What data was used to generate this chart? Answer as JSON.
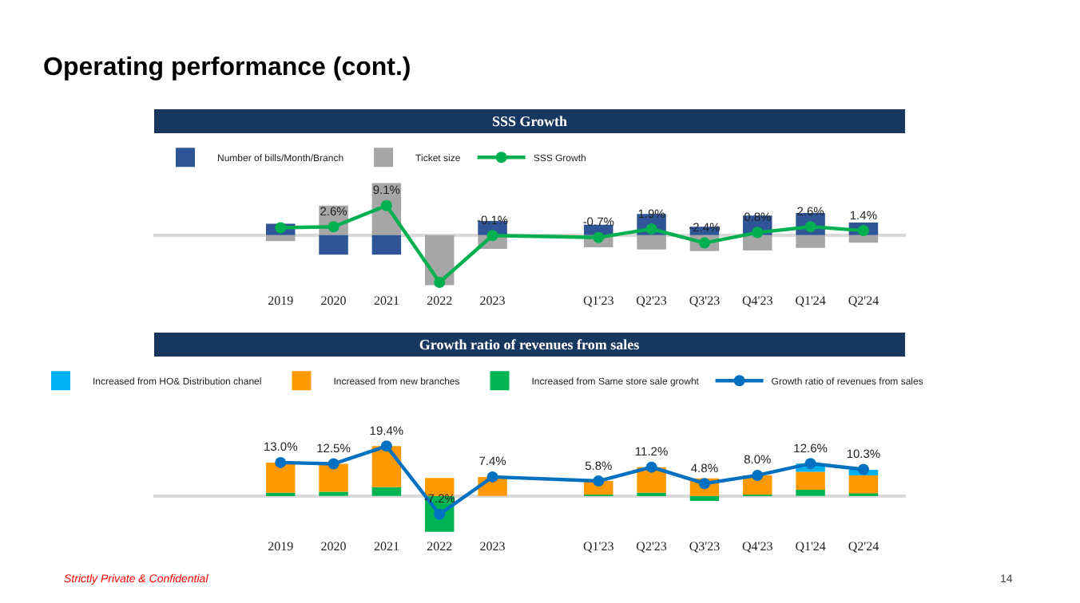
{
  "chart_data": [
    {
      "type": "bar",
      "title": "SSS Growth",
      "stacked": true,
      "legend": "top left",
      "categories": [
        "2019",
        "2020",
        "2021",
        "2022",
        "2023",
        null,
        "Q1'23",
        "Q2'23",
        "Q3'23",
        "Q4'23",
        "Q1'24",
        "Q2'24"
      ],
      "series": [
        {
          "name": "Ticket size",
          "color": "#a6a6a6",
          "values": [
            -1.8,
            9.1,
            16.0,
            -15.4,
            -4.2,
            null,
            -3.7,
            -4.4,
            -4.9,
            -4.7,
            -3.9,
            -2.3
          ]
        },
        {
          "name": "Number of bills/Month/Branch",
          "color": "#2f5597",
          "values": [
            3.5,
            -6.0,
            -6.0,
            0,
            4.4,
            null,
            3.2,
            6.5,
            2.6,
            6.0,
            6.8,
            3.9
          ]
        },
        {
          "name": "SSS Growth",
          "type": "line",
          "color": "#00b050",
          "marker": "circle",
          "line_style": "solid",
          "values": [
            2.3,
            2.6,
            9.1,
            -14.5,
            -0.1,
            null,
            -0.7,
            1.9,
            -2.4,
            0.8,
            2.6,
            1.4
          ],
          "value_labels": [
            null,
            "2.6%",
            "9.1%",
            null,
            "-0.1%",
            null,
            "-0.7%",
            "1.9%",
            "-2.4%",
            "0.8%",
            "2.6%",
            "1.4%"
          ]
        }
      ],
      "annotations": [
        "Operating performance (cont.)"
      ]
    },
    {
      "type": "bar",
      "title": "Growth ratio of revenues from sales",
      "stacked": true,
      "legend": "top left",
      "categories": [
        "2019",
        "2020",
        "2021",
        "2022",
        "2023",
        null,
        "Q1'23",
        "Q2'23",
        "Q3'23",
        "Q4'23",
        "Q1'24",
        "Q2'24"
      ],
      "series": [
        {
          "name": "Increased from Same store sale growht",
          "color": "#00b454",
          "values": [
            1.2,
            1.6,
            3.4,
            -14.0,
            0,
            null,
            0.4,
            1.2,
            -2.0,
            0.4,
            2.4,
            1.0
          ]
        },
        {
          "name": "Increased from new branches",
          "color": "#ff9900",
          "values": [
            11.8,
            10.9,
            16.0,
            7.0,
            7.4,
            null,
            5.4,
            10.0,
            6.8,
            7.6,
            7.0,
            7.0
          ]
        },
        {
          "name": "Increased from HO& Distribution chanel",
          "color": "#00b0f0",
          "values": [
            0,
            0,
            0,
            0,
            0,
            null,
            0,
            0,
            0,
            0,
            3.2,
            2.2
          ]
        },
        {
          "name": "Growth ratio of revenues from sales",
          "type": "line",
          "color": "#0070c0",
          "marker": "circle",
          "line_style": "solid",
          "values": [
            13.0,
            12.5,
            19.4,
            -7.2,
            7.4,
            null,
            5.8,
            11.2,
            4.8,
            8.0,
            12.6,
            10.3
          ],
          "value_labels": [
            "13.0%",
            "12.5%",
            "19.4%",
            "-7.2%",
            "7.4%",
            null,
            "5.8%",
            "11.2%",
            "4.8%",
            "8.0%",
            "12.6%",
            "10.3%"
          ]
        }
      ],
      "annotations": [
        "Strictly Private & Confidential",
        "14"
      ]
    }
  ]
}
